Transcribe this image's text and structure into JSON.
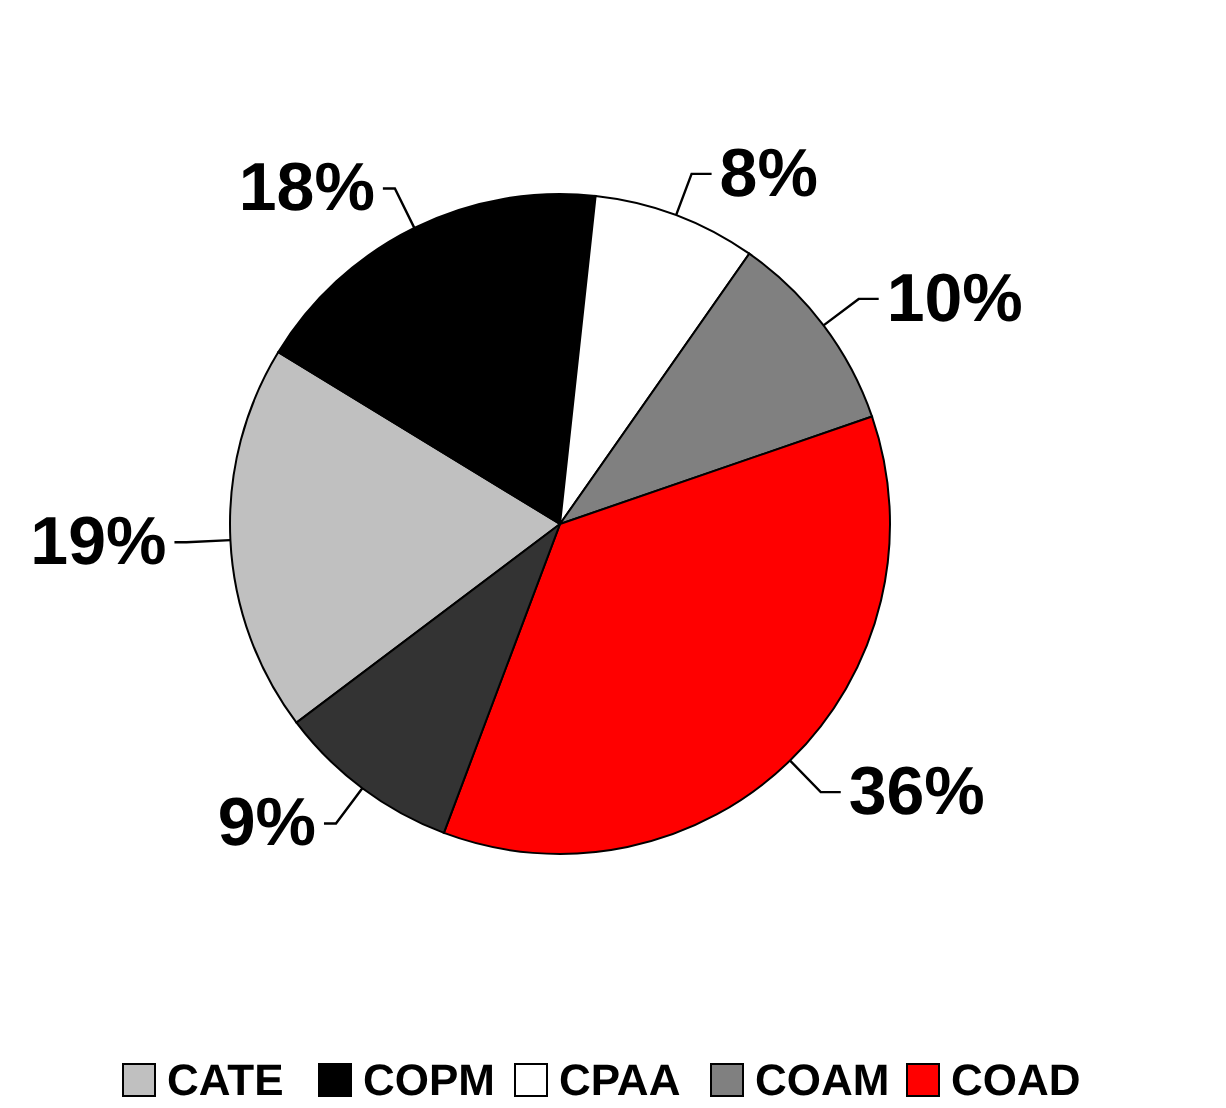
{
  "chart_data": {
    "type": "pie",
    "categories": [
      "CATE",
      "COPM",
      "CPAA",
      "COAM",
      "COAD",
      null
    ],
    "values": [
      19,
      18,
      8,
      10,
      36,
      9
    ],
    "colors": [
      "#c0c0c0",
      "#000000",
      "#ffffff",
      "#808080",
      "#ff0000",
      "#333333"
    ],
    "value_labels": [
      "19%",
      "18%",
      "8%",
      "10%",
      "36%",
      "9%"
    ],
    "legend": "bottom"
  }
}
